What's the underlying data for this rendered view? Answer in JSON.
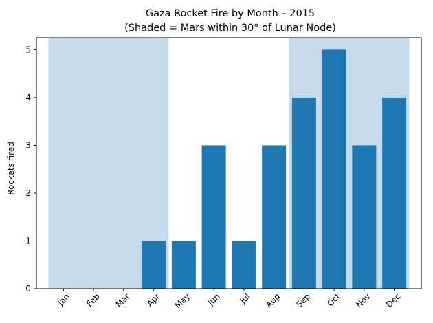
{
  "chart_data": {
    "type": "bar",
    "title": "Gaza Rocket Fire by Month – 2015",
    "subtitle": "(Shaded = Mars within 30° of Lunar Node)",
    "xlabel": "",
    "ylabel": "Rockets fired",
    "categories": [
      "Jan",
      "Feb",
      "Mar",
      "Apr",
      "May",
      "Jun",
      "Jul",
      "Aug",
      "Sep",
      "Oct",
      "Nov",
      "Dec"
    ],
    "values": [
      0,
      0,
      0,
      1,
      1,
      3,
      1,
      3,
      4,
      5,
      3,
      4
    ],
    "ylim": [
      0,
      5.25
    ],
    "yticks": [
      0,
      1,
      2,
      3,
      4,
      5
    ],
    "shaded_ranges": [
      [
        "Jan",
        "Apr"
      ],
      [
        "Sep",
        "Dec"
      ]
    ],
    "grid": false,
    "colors": {
      "bar": "#1f77b4",
      "shade": "#c6dcec",
      "axis": "#000000"
    }
  }
}
